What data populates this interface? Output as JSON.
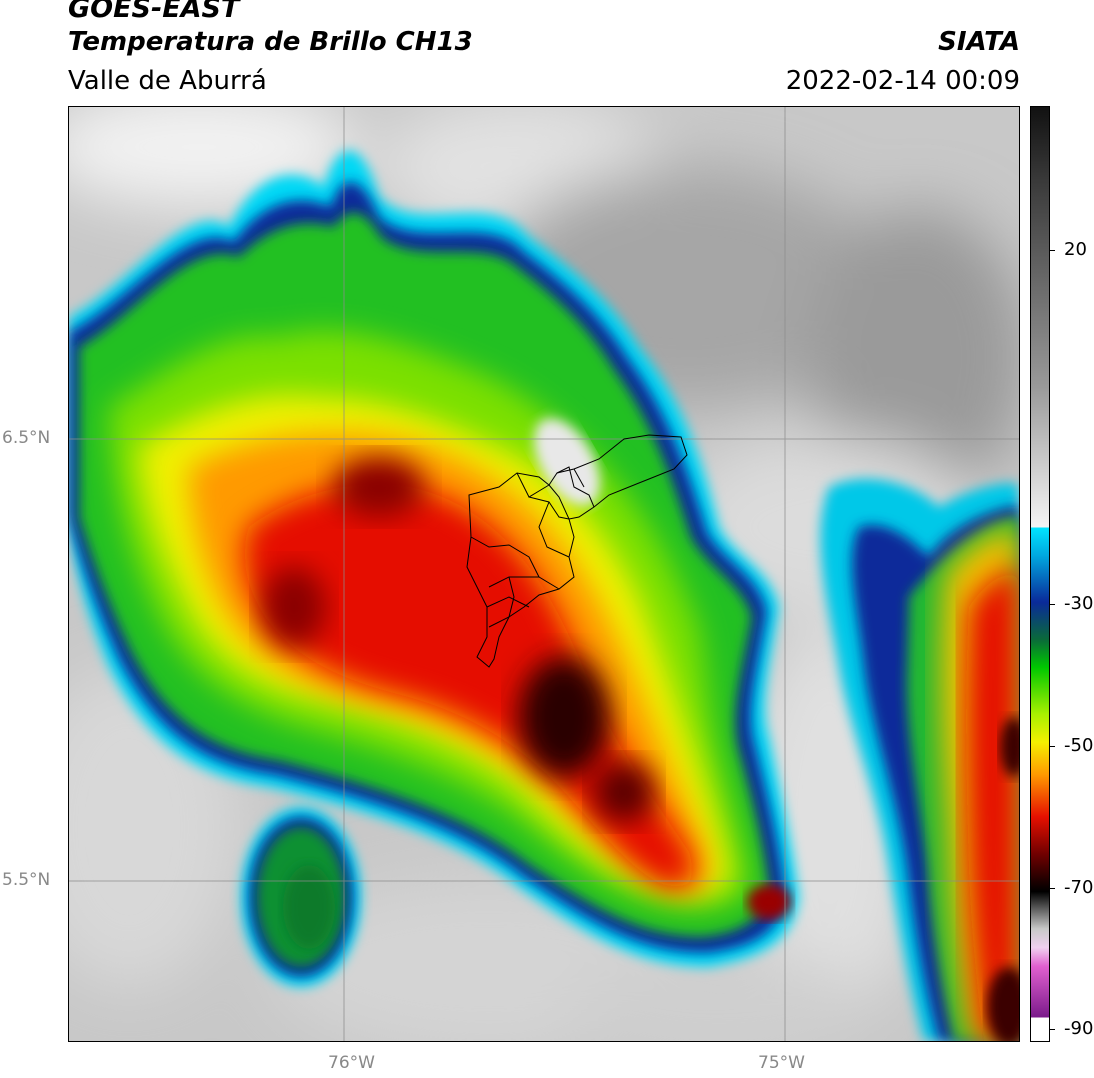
{
  "header": {
    "satellite": "GOES-EAST",
    "product": "Temperatura de Brillo CH13",
    "region": "Valle de Aburrá",
    "organization": "SIATA",
    "timestamp": "2022-02-14 00:09"
  },
  "map": {
    "lat_labels": [
      "6.5°N",
      "5.5°N"
    ],
    "lon_labels": [
      "76°W",
      "75°W"
    ],
    "gridlines": true,
    "overlay": "Valle de Aburrá municipal boundaries"
  },
  "colorbar": {
    "tick_labels": [
      "20",
      "-30",
      "-50",
      "-70",
      "-90"
    ],
    "range": [
      -92,
      30
    ],
    "palette": {
      "warm": "#bebebe",
      "cold_cyan": "#00e5ff",
      "cold_blue": "#0a2a9a",
      "cold_green": "#00c800",
      "cold_yellow": "#f4f000",
      "cold_orange": "#ff9900",
      "cold_red": "#e51000",
      "very_cold": "#1a0000",
      "coldest_magenta": "#e060d0"
    }
  }
}
